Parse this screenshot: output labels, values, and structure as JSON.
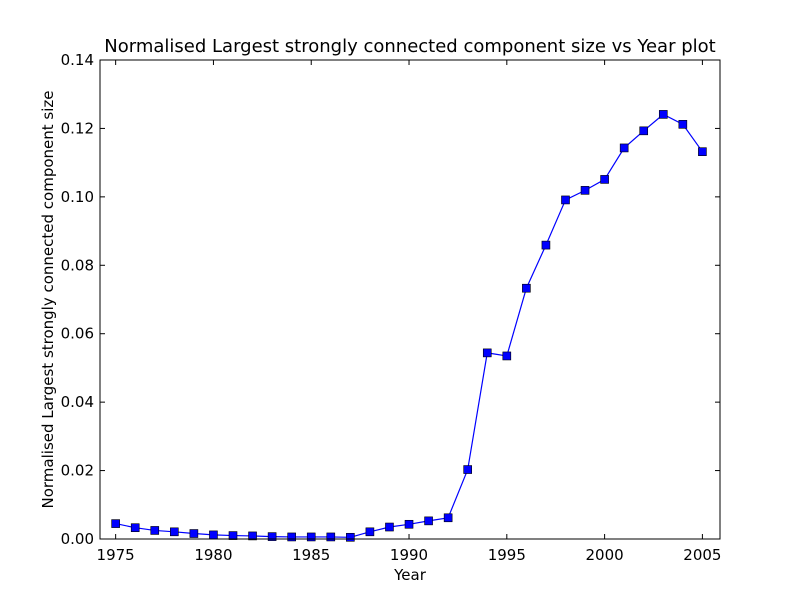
{
  "colors": {
    "series": "#0000ff",
    "background": "#ffffff",
    "axes": "#000000"
  },
  "chart_data": {
    "type": "line",
    "title": "Normalised Largest strongly connected component size vs Year plot",
    "xlabel": "Year",
    "ylabel": "Normalised Largest strongly connected component size",
    "xlim": [
      1974.2,
      2005.9
    ],
    "ylim": [
      0,
      0.14
    ],
    "xticks": [
      "1975",
      "1980",
      "1985",
      "1990",
      "1995",
      "2000",
      "2005"
    ],
    "yticks": [
      "0.00",
      "0.02",
      "0.04",
      "0.06",
      "0.08",
      "0.10",
      "0.12",
      "0.14"
    ],
    "grid": false,
    "marker": "square",
    "x": [
      1975,
      1976,
      1977,
      1978,
      1979,
      1980,
      1981,
      1982,
      1983,
      1984,
      1985,
      1986,
      1987,
      1988,
      1989,
      1990,
      1991,
      1992,
      1993,
      1994,
      1995,
      1996,
      1997,
      1998,
      1999,
      2000,
      2001,
      2002,
      2003,
      2004,
      2005
    ],
    "series": [
      {
        "values": [
          0.0045,
          0.0033,
          0.0025,
          0.0021,
          0.0016,
          0.0012,
          0.001,
          0.0009,
          0.0007,
          0.0006,
          0.0006,
          0.0006,
          0.0005,
          0.0021,
          0.0035,
          0.0043,
          0.0053,
          0.0062,
          0.0203,
          0.0544,
          0.0535,
          0.0733,
          0.0859,
          0.0991,
          0.1019,
          0.1051,
          0.1143,
          0.1193,
          0.1241,
          0.1212,
          0.1132
        ]
      }
    ]
  }
}
